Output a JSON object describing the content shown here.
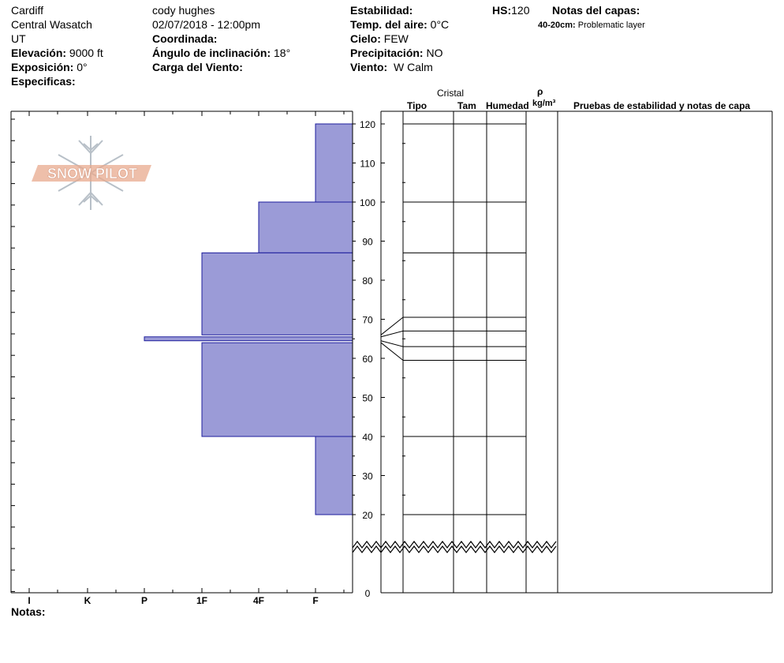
{
  "header": {
    "location": "Cardiff",
    "range": "Central Wasatch",
    "state": "UT",
    "elevation_label": "Elevación:",
    "elevation_value": "9000 ft",
    "aspect_label": "Exposición:",
    "aspect_value": "0°",
    "specifics_label": "Especificas:",
    "observer": "cody hughes",
    "datetime": "02/07/2018 - 12:00pm",
    "coord_label": "Coordinada:",
    "slope_label": "Ángulo de inclinación:",
    "slope_value": "18°",
    "wind_load_label": "Carga del Viento:",
    "stability_label": "Estabilidad:",
    "air_temp_label": "Temp. del aire:",
    "air_temp_value": "0°C",
    "sky_label": "Cielo:",
    "sky_value": "FEW",
    "precip_label": "Precipitación:",
    "precip_value": "NO",
    "wind_label": "Viento:",
    "wind_value": "W Calm",
    "hs_label": "HS:",
    "hs_value": "120",
    "layer_notes_label": "Notas del capas:",
    "layer_note_range": "40-20cm:",
    "layer_note_text": "Problematic layer"
  },
  "columns": {
    "crystal": "Cristal",
    "type": "Tipo",
    "size": "Tam",
    "moisture": "Humedad",
    "rho": "ρ",
    "density_unit": "kg/m³",
    "tests": "Pruebas de estabilidad y notas de capa"
  },
  "logo_text": "SNOW PILOT",
  "notes_label": "Notas:",
  "colors": {
    "layer_fill": "#9b9bd7",
    "layer_stroke": "#1c1c9c",
    "logo": "#e8a98e"
  },
  "chart_data": {
    "type": "bar",
    "orientation": "horizontal",
    "x_categories": [
      "I",
      "K",
      "P",
      "1F",
      "4F",
      "F"
    ],
    "y_ticks": [
      0,
      20,
      30,
      40,
      50,
      60,
      70,
      80,
      90,
      100,
      110,
      120
    ],
    "ylim": [
      0,
      120
    ],
    "layers": [
      {
        "top": 120,
        "bottom": 100,
        "hardness": "F"
      },
      {
        "top": 100,
        "bottom": 87,
        "hardness": "4F"
      },
      {
        "top": 87,
        "bottom": 66,
        "hardness": "1F"
      },
      {
        "top": 65.5,
        "bottom": 64.5,
        "hardness": "P"
      },
      {
        "top": 64,
        "bottom": 40,
        "hardness": "1F"
      },
      {
        "top": 40,
        "bottom": 20,
        "hardness": "F"
      }
    ]
  }
}
